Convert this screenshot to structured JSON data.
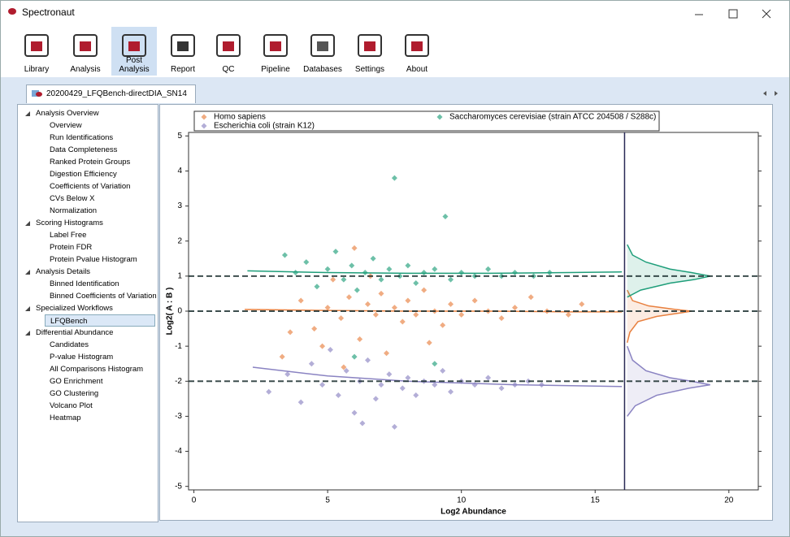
{
  "window": {
    "title": "Spectronaut"
  },
  "toolbar": {
    "items": [
      "Library",
      "Analysis",
      "Post Analysis",
      "Report",
      "QC",
      "Pipeline",
      "Databases",
      "Settings",
      "About"
    ],
    "selected": "Post Analysis"
  },
  "tab": {
    "label": "20200429_LFQBench-directDIA_SN14"
  },
  "tree": {
    "selected": "LFQBench",
    "sections": [
      {
        "label": "Analysis Overview",
        "children": [
          "Overview",
          "Run Identifications",
          "Data Completeness",
          "Ranked Protein Groups",
          "Digestion Efficiency",
          "Coefficients of Variation",
          "CVs Below X",
          "Normalization"
        ]
      },
      {
        "label": "Scoring Histograms",
        "children": [
          "Label Free",
          "Protein FDR",
          "Protein Pvalue Histogram"
        ]
      },
      {
        "label": "Analysis Details",
        "children": [
          "Binned Identification",
          "Binned Coefficients of Variation"
        ]
      },
      {
        "label": "Specialized Workflows",
        "children": [
          "LFQBench"
        ]
      },
      {
        "label": "Differential Abundance",
        "children": [
          "Candidates",
          "P-value Histogram",
          "All Comparisons Histogram",
          "GO Enrichment",
          "GO Clustering",
          "Volcano Plot",
          "Heatmap"
        ]
      }
    ]
  },
  "chart_data": {
    "type": "scatter",
    "x_label": "Log2 Abundance",
    "y_label": "Log2( A : B )",
    "xlim": [
      -0.2,
      21.1
    ],
    "ylim": [
      -5.1,
      5.1
    ],
    "xticks": [
      0,
      5,
      10,
      15,
      20
    ],
    "yticks": [
      -5,
      -4,
      -3,
      -2,
      -1,
      0,
      1,
      2,
      3,
      4,
      5
    ],
    "divider_x": 16.1,
    "series": [
      {
        "name": "Homo sapiens",
        "color": "#e8803f",
        "reference": 0,
        "x": [
          3.3,
          4.0,
          4.5,
          5.0,
          5.2,
          5.5,
          5.8,
          6.0,
          6.2,
          6.5,
          6.8,
          7.0,
          7.2,
          7.5,
          7.8,
          8.0,
          8.3,
          8.6,
          9.0,
          9.3,
          9.6,
          10.0,
          10.5,
          11.0,
          11.5,
          12.0,
          12.6,
          13.2,
          14.0,
          14.5,
          3.6,
          5.6,
          8.8,
          6.6,
          4.8
        ],
        "values": [
          -1.3,
          0.3,
          -0.5,
          0.1,
          0.9,
          -0.2,
          0.4,
          1.8,
          -0.8,
          0.2,
          -0.1,
          0.5,
          -1.2,
          0.1,
          -0.3,
          0.3,
          -0.1,
          0.6,
          0,
          -0.4,
          0.2,
          -0.1,
          0.3,
          0,
          -0.2,
          0.1,
          0.4,
          0,
          -0.1,
          0.2,
          -0.6,
          -1.6,
          -0.9,
          1.0,
          -1.0
        ],
        "trend": {
          "x": [
            1.9,
            5,
            8,
            11,
            14,
            16
          ],
          "y": [
            0.05,
            0.02,
            0,
            0,
            -0.02,
            -0.02
          ]
        },
        "density": {
          "y": [
            0.6,
            0.3,
            0.15,
            0.05,
            0,
            -0.05,
            -0.15,
            -0.3,
            -0.6,
            -0.9
          ],
          "x": [
            16.2,
            16.4,
            17.0,
            18.0,
            18.6,
            18.2,
            17.3,
            16.6,
            16.3,
            16.2
          ]
        }
      },
      {
        "name": "Saccharomyces cerevisiae (strain ATCC 204508 / S288c)",
        "color": "#1f9e7a",
        "reference": 1,
        "x": [
          3.4,
          3.8,
          4.2,
          4.6,
          5.0,
          5.3,
          5.6,
          5.9,
          6.1,
          6.4,
          6.7,
          7.0,
          7.3,
          7.5,
          7.7,
          8.0,
          8.3,
          8.6,
          9.0,
          9.4,
          9.6,
          10.0,
          10.5,
          11.0,
          11.5,
          12.0,
          12.7,
          13.3,
          6.0,
          9.0
        ],
        "values": [
          1.6,
          1.1,
          1.4,
          0.7,
          1.2,
          1.7,
          0.9,
          1.3,
          0.6,
          1.1,
          1.5,
          0.9,
          1.2,
          3.8,
          1.0,
          1.3,
          0.8,
          1.1,
          1.2,
          2.7,
          0.9,
          1.1,
          1.0,
          1.2,
          1.0,
          1.1,
          1.0,
          1.1,
          -1.3,
          -1.5
        ],
        "trend": {
          "x": [
            2,
            5,
            8,
            11,
            14,
            16
          ],
          "y": [
            1.15,
            1.1,
            1.08,
            1.08,
            1.1,
            1.12
          ]
        },
        "density": {
          "y": [
            1.9,
            1.6,
            1.4,
            1.2,
            1.1,
            1.0,
            0.9,
            0.8,
            0.6,
            0.4
          ],
          "x": [
            16.2,
            16.4,
            16.9,
            17.8,
            18.6,
            19.3,
            18.7,
            17.8,
            16.7,
            16.2
          ]
        }
      },
      {
        "name": "Escherichia coli (strain K12)",
        "color": "#8a83c2",
        "reference": -2,
        "x": [
          2.8,
          3.5,
          4.0,
          4.4,
          4.8,
          5.1,
          5.4,
          5.7,
          6.0,
          6.2,
          6.5,
          6.8,
          7.0,
          7.3,
          7.5,
          7.8,
          8.0,
          8.3,
          8.6,
          9.0,
          9.3,
          9.6,
          10.0,
          10.5,
          11.0,
          11.5,
          12.0,
          12.5,
          13.0,
          6.3
        ],
        "values": [
          -2.3,
          -1.8,
          -2.6,
          -1.5,
          -2.1,
          -1.1,
          -2.4,
          -1.7,
          -2.9,
          -2.0,
          -1.4,
          -2.5,
          -2.1,
          -1.8,
          -3.3,
          -2.2,
          -1.9,
          -2.4,
          -2.0,
          -2.1,
          -1.7,
          -2.3,
          -2.0,
          -2.1,
          -1.9,
          -2.2,
          -2.1,
          -2.0,
          -2.1,
          -3.2
        ],
        "trend": {
          "x": [
            2.2,
            5,
            8,
            12,
            16
          ],
          "y": [
            -1.6,
            -1.85,
            -2.0,
            -2.1,
            -2.15
          ]
        },
        "density": {
          "y": [
            -1.0,
            -1.4,
            -1.7,
            -1.9,
            -2.0,
            -2.1,
            -2.2,
            -2.4,
            -2.7,
            -3.0
          ],
          "x": [
            16.2,
            16.4,
            16.9,
            17.8,
            18.6,
            19.3,
            18.5,
            17.3,
            16.5,
            16.2
          ]
        }
      }
    ]
  }
}
